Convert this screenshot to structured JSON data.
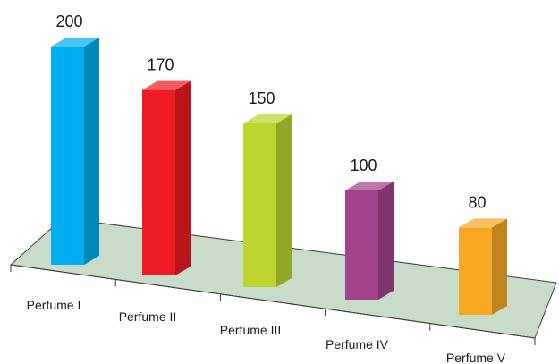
{
  "chart_data": {
    "type": "bar",
    "categories": [
      "Perfume I",
      "Perfume II",
      "Perfume III",
      "Perfume IV",
      "Perfume V"
    ],
    "values": [
      200,
      170,
      150,
      100,
      80
    ],
    "ylim": [
      0,
      200
    ],
    "grid": false,
    "legend": "none",
    "colors": [
      "#00AEEF",
      "#ED1C24",
      "#BED530",
      "#A3438D",
      "#F7A823"
    ],
    "floor_color": "#C9DBC9"
  }
}
